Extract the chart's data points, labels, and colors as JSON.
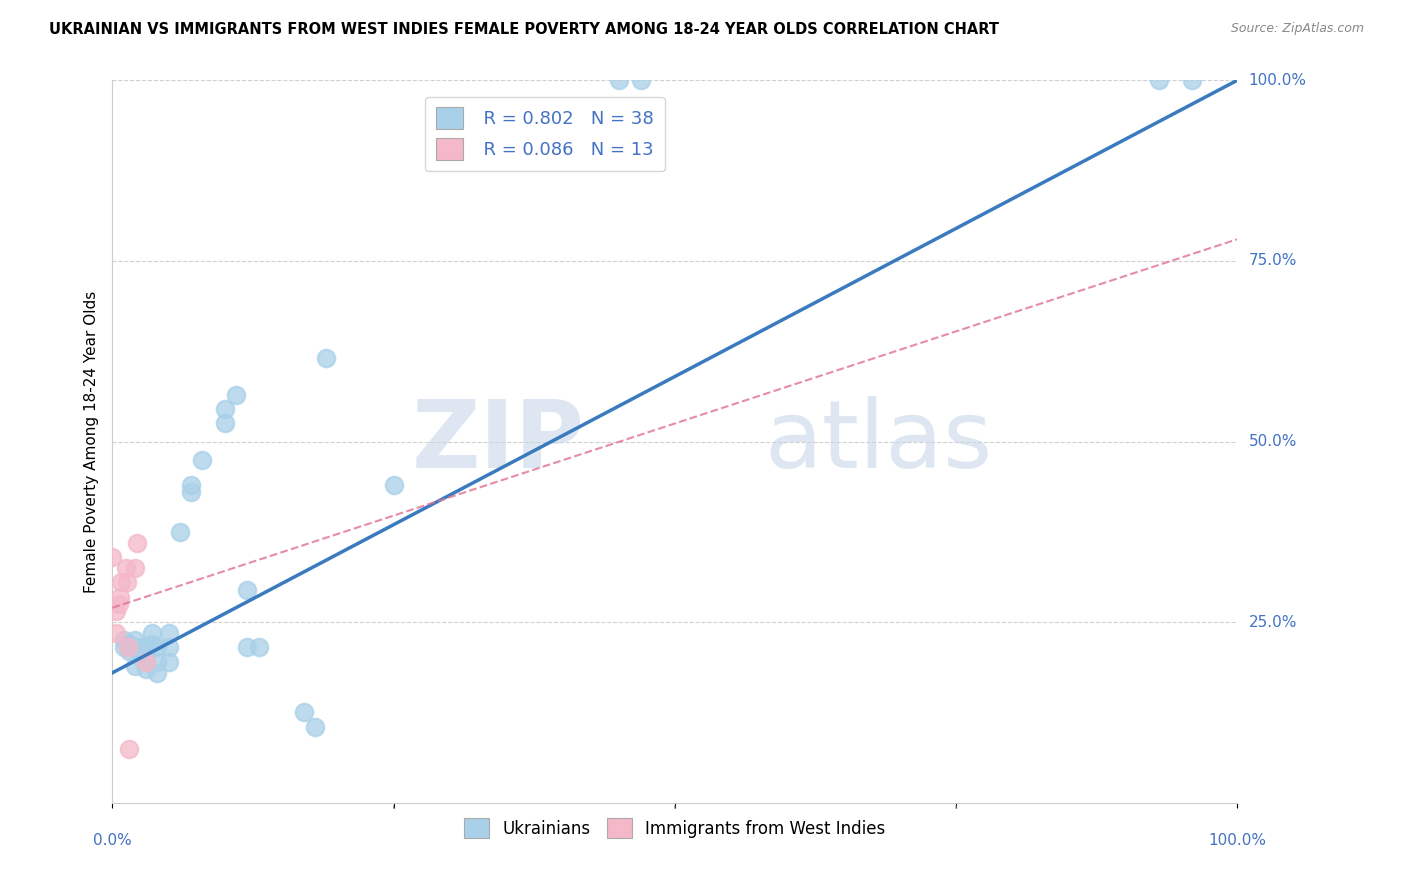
{
  "title": "UKRAINIAN VS IMMIGRANTS FROM WEST INDIES FEMALE POVERTY AMONG 18-24 YEAR OLDS CORRELATION CHART",
  "source": "Source: ZipAtlas.com",
  "ylabel": "Female Poverty Among 18-24 Year Olds",
  "xlim": [
    0,
    1
  ],
  "ylim": [
    0,
    1
  ],
  "blue_color": "#a8d0e8",
  "pink_color": "#f4b8c8",
  "blue_line_color": "#3a7abf",
  "pink_line_color": "#e07090",
  "R_blue": 0.802,
  "N_blue": 38,
  "R_pink": 0.086,
  "N_pink": 13,
  "legend_label_blue": "Ukrainians",
  "legend_label_pink": "Immigrants from West Indies",
  "watermark_zip": "ZIP",
  "watermark_atlas": "atlas",
  "blue_x": [
    0.01,
    0.01,
    0.015,
    0.015,
    0.02,
    0.02,
    0.02,
    0.025,
    0.025,
    0.03,
    0.03,
    0.03,
    0.035,
    0.035,
    0.04,
    0.04,
    0.04,
    0.05,
    0.05,
    0.05,
    0.06,
    0.07,
    0.07,
    0.08,
    0.1,
    0.1,
    0.11,
    0.12,
    0.12,
    0.13,
    0.17,
    0.18,
    0.25,
    0.45,
    0.47,
    0.93,
    0.96,
    0.19
  ],
  "blue_y": [
    0.215,
    0.225,
    0.21,
    0.22,
    0.215,
    0.225,
    0.19,
    0.215,
    0.2,
    0.215,
    0.2,
    0.185,
    0.22,
    0.235,
    0.215,
    0.195,
    0.18,
    0.215,
    0.235,
    0.195,
    0.375,
    0.43,
    0.44,
    0.475,
    0.525,
    0.545,
    0.565,
    0.295,
    0.215,
    0.215,
    0.125,
    0.105,
    0.44,
    1.0,
    1.0,
    1.0,
    1.0,
    0.615
  ],
  "pink_x": [
    0.0,
    0.003,
    0.003,
    0.006,
    0.007,
    0.008,
    0.012,
    0.013,
    0.014,
    0.015,
    0.02,
    0.022,
    0.03
  ],
  "pink_y": [
    0.34,
    0.265,
    0.235,
    0.275,
    0.285,
    0.305,
    0.325,
    0.305,
    0.215,
    0.075,
    0.325,
    0.36,
    0.195
  ],
  "blue_line_x0": 0.0,
  "blue_line_y0": 0.18,
  "blue_line_x1": 1.0,
  "blue_line_y1": 1.0,
  "pink_line_x0": 0.0,
  "pink_line_y0": 0.27,
  "pink_line_x1": 1.0,
  "pink_line_y1": 0.78
}
